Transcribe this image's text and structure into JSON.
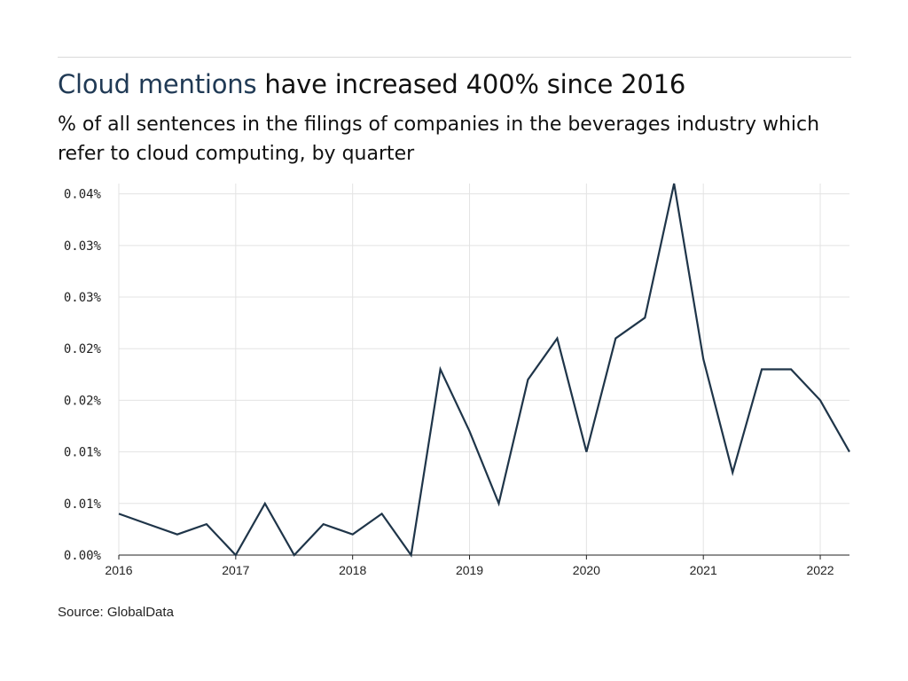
{
  "title": {
    "highlight": "Cloud mentions",
    "rest": " have increased 400% since 2016"
  },
  "subtitle": "% of all sentences in the filings of companies in the beverages industry which refer to cloud computing, by quarter",
  "source": "Source: GlobalData",
  "colors": {
    "line": "#1f3549",
    "highlight": "#203a55",
    "grid": "#e3e3e3",
    "axis": "#222222"
  },
  "chart_data": {
    "type": "line",
    "title": "",
    "xlabel": "",
    "ylabel": "",
    "x_ticks": [
      "2016",
      "2017",
      "2018",
      "2019",
      "2020",
      "2021",
      "2022"
    ],
    "y_ticks": [
      "0.00%",
      "0.01%",
      "0.01%",
      "0.02%",
      "0.02%",
      "0.03%",
      "0.03%",
      "0.04%"
    ],
    "y_tick_values": [
      0,
      0.005,
      0.01,
      0.015,
      0.02,
      0.025,
      0.03,
      0.035
    ],
    "xlim": [
      "2016-Q1",
      "2022-Q2"
    ],
    "ylim": [
      0,
      0.036
    ],
    "grid": true,
    "legend": "none",
    "series": [
      {
        "x": [
          "2016-Q1",
          "2016-Q2",
          "2016-Q3",
          "2016-Q4",
          "2017-Q1",
          "2017-Q2",
          "2017-Q3",
          "2017-Q4",
          "2018-Q1",
          "2018-Q2",
          "2018-Q3",
          "2018-Q4",
          "2019-Q1",
          "2019-Q2",
          "2019-Q3",
          "2019-Q4",
          "2020-Q1",
          "2020-Q2",
          "2020-Q3",
          "2020-Q4",
          "2021-Q1",
          "2021-Q2",
          "2021-Q3",
          "2021-Q4",
          "2022-Q1",
          "2022-Q2"
        ],
        "values": [
          0.004,
          0.003,
          0.002,
          0.003,
          0.0,
          0.005,
          0.0,
          0.003,
          0.002,
          0.004,
          0.0,
          0.018,
          0.012,
          0.005,
          0.017,
          0.021,
          0.01,
          0.021,
          0.023,
          0.036,
          0.019,
          0.008,
          0.018,
          0.018,
          0.015,
          0.01
        ]
      }
    ]
  }
}
